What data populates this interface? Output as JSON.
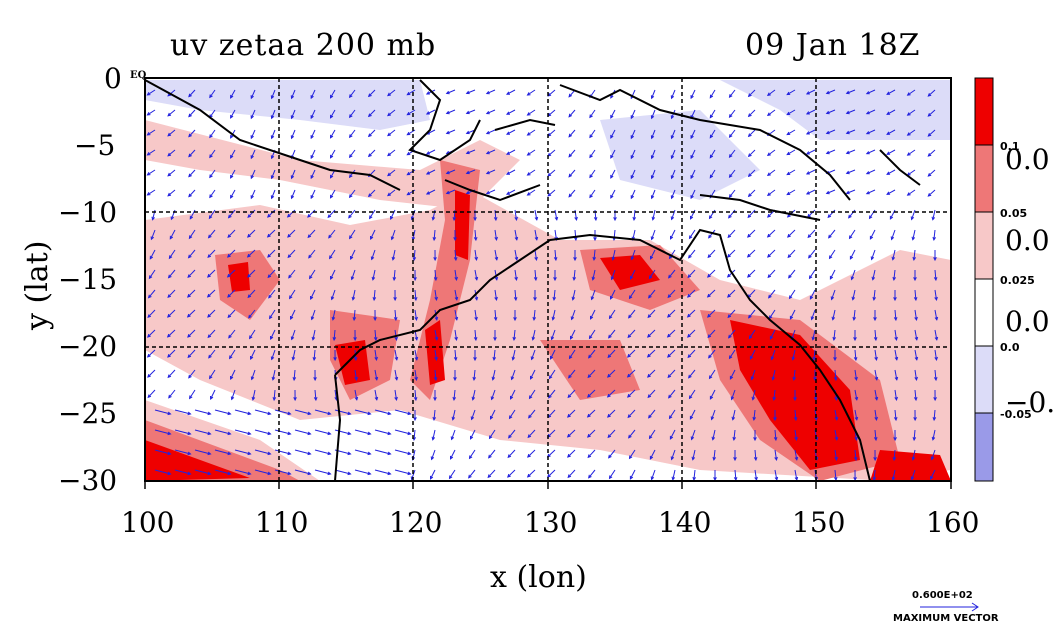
{
  "title_left": "uv zetaa 200 mb",
  "title_right": "09 Jan 18Z",
  "corner_mark": "EQ",
  "x_axis": {
    "label": "x (lon)",
    "ticks": [
      "100",
      "110",
      "120",
      "130",
      "140",
      "150",
      "160"
    ],
    "range": [
      100,
      160
    ]
  },
  "y_axis": {
    "label": "y (lat)",
    "ticks": [
      "0",
      "−5",
      "−10",
      "−15",
      "−20",
      "−25",
      "−30"
    ],
    "range": [
      -30,
      0
    ]
  },
  "colorbar": {
    "small_labels": [
      "0.1",
      "0.05",
      "0.025",
      "0.0",
      "-0.05"
    ],
    "big_labels": [
      "0.0",
      "0.0",
      "0.0",
      "−0."
    ],
    "colors": [
      "#ee0000",
      "#ee7777",
      "#f7c8c8",
      "#ffffff",
      "#dcdcf8",
      "#9a9ae8"
    ]
  },
  "vector_key": {
    "value": "0.600E+02",
    "label": "MAXIMUM VECTOR"
  },
  "colors": {
    "strong_red": "#ee0000",
    "mid_red": "#ee7777",
    "light_red": "#f7c8c8",
    "light_blue": "#dcdcf8",
    "vector": "#2222dd"
  }
}
